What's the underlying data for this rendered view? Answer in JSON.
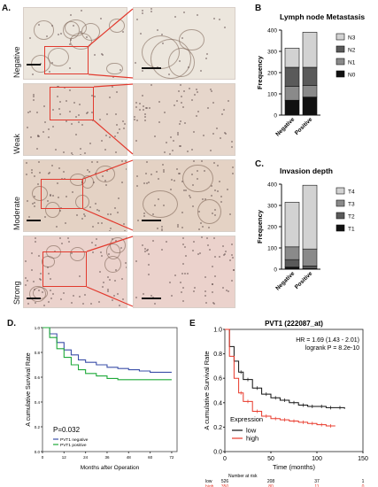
{
  "panels": {
    "A": "A.",
    "B": "B",
    "C": "C.",
    "D": "D.",
    "E": "E"
  },
  "panelA": {
    "rows": [
      "Negative",
      "Weak",
      "Moderate",
      "Strong"
    ],
    "colors": {
      "negative": "#ece6dd",
      "weak": "#e6d6cb",
      "moderate": "#e4d2c4",
      "strong": "#ebd2cc",
      "box": "#e23a2e"
    }
  },
  "chart_data": [
    {
      "id": "B",
      "type": "bar",
      "stacked": true,
      "title": "Lymph node Metastasis",
      "ylabel": "Frequency",
      "ylim": [
        0,
        400
      ],
      "yticks": [
        0,
        100,
        200,
        300,
        400
      ],
      "categories": [
        "Negative",
        "Positive"
      ],
      "series": [
        {
          "name": "N0",
          "color": "#111111",
          "values": [
            70,
            85
          ]
        },
        {
          "name": "N1",
          "color": "#8a8a8a",
          "values": [
            65,
            55
          ]
        },
        {
          "name": "N2",
          "color": "#5a5a5a",
          "values": [
            90,
            85
          ]
        },
        {
          "name": "N3",
          "color": "#d2d2d2",
          "values": [
            90,
            165
          ]
        }
      ],
      "legend_order": [
        "N3",
        "N2",
        "N1",
        "N0"
      ]
    },
    {
      "id": "C",
      "type": "bar",
      "stacked": true,
      "title": "Invasion depth",
      "ylabel": "Frequency",
      "ylim": [
        0,
        400
      ],
      "yticks": [
        0,
        100,
        200,
        300,
        400
      ],
      "categories": [
        "Negative",
        "Positive"
      ],
      "series": [
        {
          "name": "T1",
          "color": "#111111",
          "values": [
            10,
            3
          ]
        },
        {
          "name": "T2",
          "color": "#5a5a5a",
          "values": [
            35,
            12
          ]
        },
        {
          "name": "T3",
          "color": "#8a8a8a",
          "values": [
            60,
            80
          ]
        },
        {
          "name": "T4",
          "color": "#d2d2d2",
          "values": [
            210,
            300
          ]
        }
      ],
      "legend_order": [
        "T4",
        "T3",
        "T2",
        "T1"
      ]
    },
    {
      "id": "D",
      "type": "line",
      "ylabel": "A cumulative Survival Rate",
      "xlabel": "Months after Operation",
      "xlim": [
        0,
        75
      ],
      "xticks": [
        0,
        12,
        24,
        36,
        48,
        60,
        72
      ],
      "ylim": [
        0,
        1.0
      ],
      "yticks": [
        "0.0",
        "0.2",
        "0.4",
        "0.6",
        "0.8",
        "1.0"
      ],
      "annotation": "P=0.032",
      "series": [
        {
          "name": "PVT1 negative",
          "color": "#3b4fa8",
          "x": [
            0,
            4,
            8,
            12,
            16,
            20,
            24,
            30,
            36,
            42,
            48,
            54,
            60,
            66,
            72
          ],
          "y": [
            1.0,
            0.95,
            0.88,
            0.82,
            0.78,
            0.74,
            0.72,
            0.7,
            0.68,
            0.67,
            0.66,
            0.65,
            0.64,
            0.64,
            0.64
          ]
        },
        {
          "name": "PVT1 positive",
          "color": "#1faa3a",
          "x": [
            0,
            4,
            8,
            12,
            16,
            20,
            24,
            30,
            36,
            42,
            48,
            54,
            60,
            66,
            72
          ],
          "y": [
            1.0,
            0.92,
            0.83,
            0.76,
            0.7,
            0.66,
            0.63,
            0.61,
            0.59,
            0.58,
            0.58,
            0.58,
            0.58,
            0.58,
            0.58
          ]
        }
      ]
    },
    {
      "id": "E",
      "type": "line",
      "title": "PVT1 (222087_at)",
      "ylabel": "A cumulative Survival Rate",
      "xlabel": "Time (months)",
      "xlim": [
        0,
        150
      ],
      "xticks": [
        "0",
        "50",
        "100",
        "150"
      ],
      "ylim": [
        0,
        1.0
      ],
      "yticks": [
        "0.0",
        "0.2",
        "0.4",
        "0.6",
        "0.8",
        "1.0"
      ],
      "stats": [
        "HR = 1.69 (1.43 - 2.01)",
        "logrank P = 8.2e-10"
      ],
      "legend_title": "Expression",
      "series": [
        {
          "name": "low",
          "color": "#111111",
          "x": [
            0,
            5,
            10,
            15,
            20,
            30,
            40,
            50,
            60,
            70,
            80,
            90,
            100,
            110,
            120,
            130
          ],
          "y": [
            1.0,
            0.86,
            0.74,
            0.65,
            0.59,
            0.52,
            0.47,
            0.44,
            0.42,
            0.4,
            0.38,
            0.37,
            0.37,
            0.36,
            0.36,
            0.35
          ]
        },
        {
          "name": "high",
          "color": "#e8382a",
          "x": [
            0,
            5,
            10,
            15,
            20,
            30,
            40,
            50,
            60,
            70,
            80,
            90,
            100,
            110,
            120
          ],
          "y": [
            1.0,
            0.78,
            0.6,
            0.48,
            0.41,
            0.33,
            0.29,
            0.27,
            0.26,
            0.25,
            0.24,
            0.23,
            0.22,
            0.21,
            0.21
          ]
        }
      ],
      "risk_table": {
        "header": "Number at risk",
        "low_label": "low",
        "high_label": "high",
        "low": [
          "526",
          "208",
          "37",
          "1"
        ],
        "high": [
          "350",
          "80",
          "11",
          "0"
        ]
      }
    }
  ]
}
